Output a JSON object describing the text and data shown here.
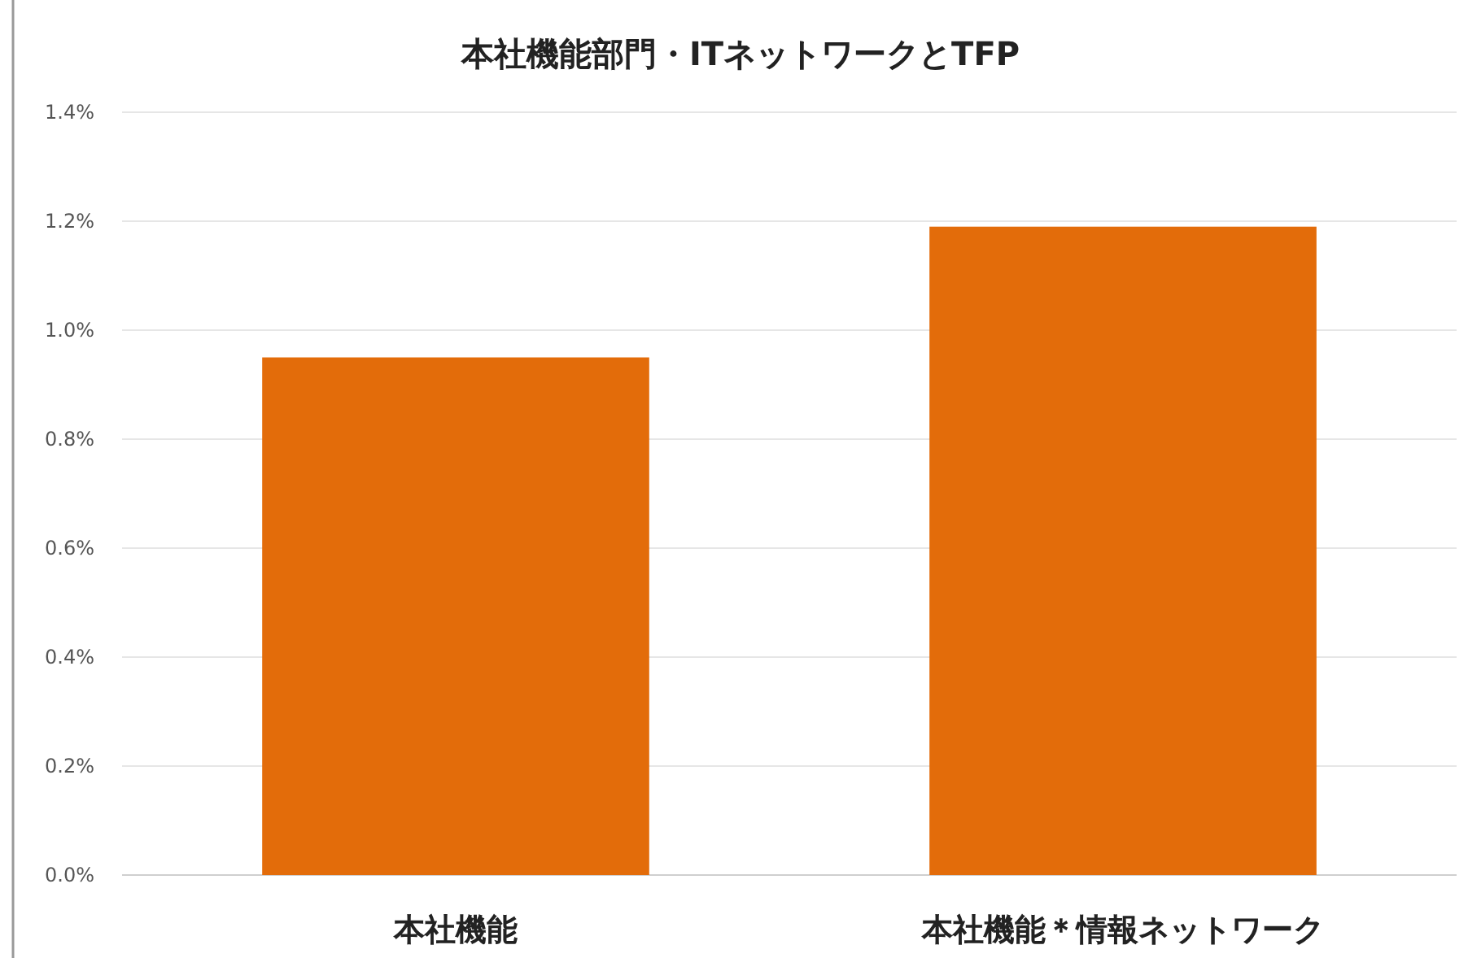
{
  "chart_data": {
    "type": "bar",
    "title": "本社機能部門・ITネットワークとTFP",
    "categories": [
      "本社機能",
      "本社機能＊情報ネットワーク"
    ],
    "values": [
      0.95,
      1.19
    ],
    "color": "#e36c0a",
    "ylim": [
      0,
      1.4
    ],
    "yticks": [
      {
        "value": 0,
        "label": "0.0%"
      },
      {
        "value": 0.2,
        "label": "0.2%"
      },
      {
        "value": 0.4,
        "label": "0.4%"
      },
      {
        "value": 0.6,
        "label": "0.6%"
      },
      {
        "value": 0.8,
        "label": "0.8%"
      },
      {
        "value": 1.0,
        "label": "1.0%"
      },
      {
        "value": 1.2,
        "label": "1.2%"
      },
      {
        "value": 1.4,
        "label": "1.4%"
      }
    ],
    "grid": "y"
  }
}
